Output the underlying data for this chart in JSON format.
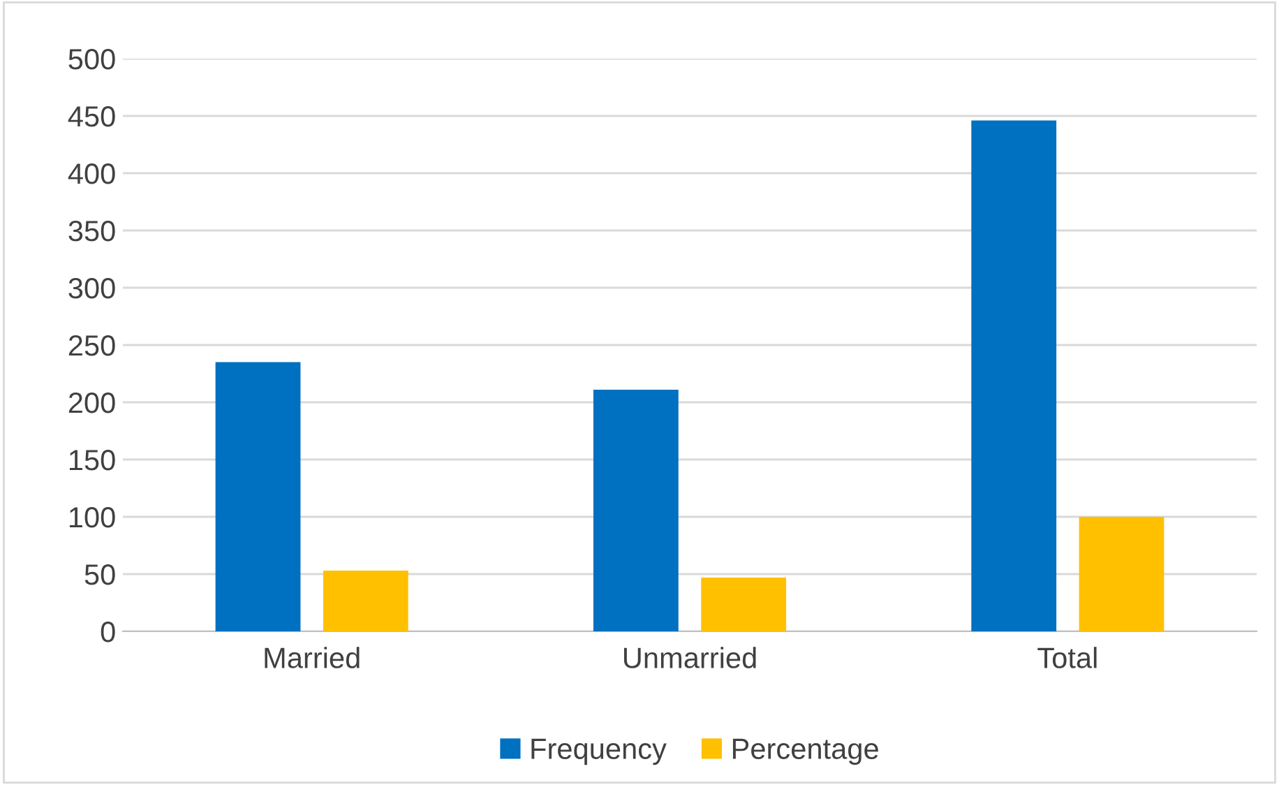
{
  "chart_data": {
    "type": "bar",
    "categories": [
      "Married",
      "Unmarried",
      "Total"
    ],
    "series": [
      {
        "name": "Frequency",
        "color": "#0070c0",
        "values": [
          235,
          211,
          446
        ]
      },
      {
        "name": "Percentage",
        "color": "#ffc000",
        "values": [
          53,
          47,
          100
        ]
      }
    ],
    "ylim": [
      0,
      500
    ],
    "yticks": [
      0,
      50,
      100,
      150,
      200,
      250,
      300,
      350,
      400,
      450,
      500
    ],
    "grid": "y",
    "legend": "bottom"
  }
}
